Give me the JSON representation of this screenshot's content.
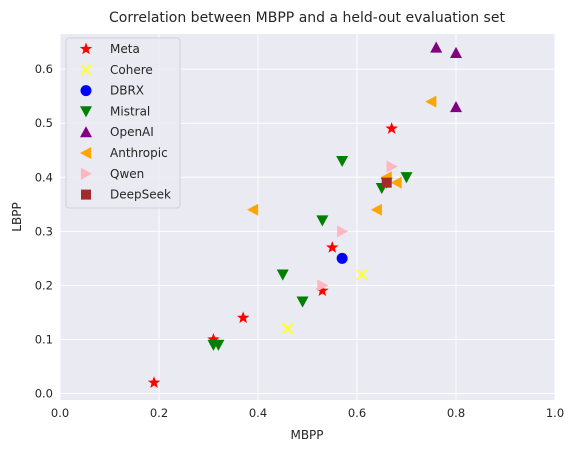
{
  "chart_data": {
    "type": "scatter",
    "title": "Correlation between MBPP and a held-out evaluation set",
    "xlabel": "MBPP",
    "ylabel": "LBPP",
    "xlim": [
      0.0,
      1.0
    ],
    "ylim": [
      -0.012,
      0.665
    ],
    "xticks": [
      0.0,
      0.2,
      0.4,
      0.6,
      0.8,
      1.0
    ],
    "xtick_labels": [
      "0.0",
      "0.2",
      "0.4",
      "0.6",
      "0.8",
      "1.0"
    ],
    "yticks": [
      0.0,
      0.1,
      0.2,
      0.3,
      0.4,
      0.5,
      0.6
    ],
    "ytick_labels": [
      "0.0",
      "0.1",
      "0.2",
      "0.3",
      "0.4",
      "0.5",
      "0.6"
    ],
    "grid": true,
    "legend_position": "top-left",
    "series": [
      {
        "name": "Meta",
        "color": "#ff0000",
        "marker": "star",
        "points": [
          [
            0.19,
            0.02
          ],
          [
            0.31,
            0.1
          ],
          [
            0.37,
            0.14
          ],
          [
            0.53,
            0.19
          ],
          [
            0.55,
            0.27
          ],
          [
            0.67,
            0.49
          ]
        ]
      },
      {
        "name": "Cohere",
        "color": "#ffff33",
        "marker": "x",
        "points": [
          [
            0.46,
            0.12
          ],
          [
            0.61,
            0.22
          ]
        ]
      },
      {
        "name": "DBRX",
        "color": "#0000ff",
        "marker": "circle",
        "points": [
          [
            0.57,
            0.25
          ]
        ]
      },
      {
        "name": "Mistral",
        "color": "#008000",
        "marker": "triangle-down",
        "points": [
          [
            0.31,
            0.09
          ],
          [
            0.32,
            0.09
          ],
          [
            0.45,
            0.22
          ],
          [
            0.49,
            0.17
          ],
          [
            0.53,
            0.32
          ],
          [
            0.57,
            0.43
          ],
          [
            0.65,
            0.38
          ],
          [
            0.66,
            0.39
          ],
          [
            0.7,
            0.4
          ]
        ]
      },
      {
        "name": "OpenAI",
        "color": "#800080",
        "marker": "triangle-up",
        "points": [
          [
            0.76,
            0.64
          ],
          [
            0.8,
            0.63
          ],
          [
            0.8,
            0.53
          ]
        ]
      },
      {
        "name": "Anthropic",
        "color": "#ffa500",
        "marker": "triangle-left",
        "points": [
          [
            0.39,
            0.34
          ],
          [
            0.64,
            0.34
          ],
          [
            0.66,
            0.4
          ],
          [
            0.68,
            0.39
          ],
          [
            0.75,
            0.54
          ]
        ]
      },
      {
        "name": "Qwen",
        "color": "#ffb6c1",
        "marker": "triangle-right",
        "points": [
          [
            0.53,
            0.2
          ],
          [
            0.57,
            0.3
          ],
          [
            0.67,
            0.42
          ]
        ]
      },
      {
        "name": "DeepSeek",
        "color": "#a52a2a",
        "marker": "square",
        "points": [
          [
            0.66,
            0.39
          ]
        ]
      }
    ]
  }
}
